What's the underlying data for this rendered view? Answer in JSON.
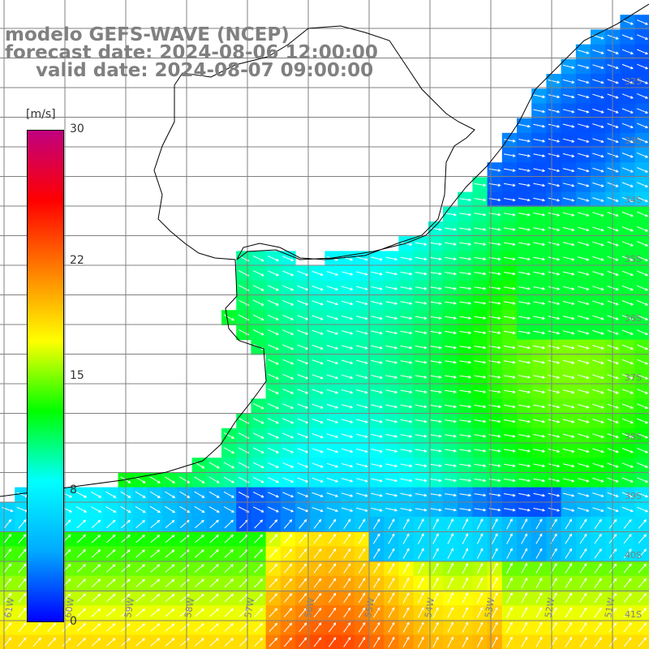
{
  "title": {
    "line1": "modelo GEFS-WAVE (NCEP)",
    "line2": "forecast date: 2024-08-06 12:00:00",
    "line3": "valid date: 2024-08-07 09:00:00"
  },
  "colorbar": {
    "units": "[m/s]",
    "ticks": [
      {
        "label": "30",
        "value": 30
      },
      {
        "label": "22",
        "value": 22
      },
      {
        "label": "15",
        "value": 15
      },
      {
        "label": "8",
        "value": 8
      },
      {
        "label": "0",
        "value": 0
      }
    ],
    "range": [
      0,
      30
    ],
    "colors": [
      "#0000ff",
      "#00aaff",
      "#00ffff",
      "#00ff00",
      "#ffff00",
      "#ff8000",
      "#ff0000",
      "#c00080"
    ]
  },
  "map": {
    "longitude_labels": [
      "61W",
      "60W",
      "59W",
      "58W",
      "57W",
      "56W",
      "55W",
      "54W",
      "53W",
      "52W",
      "51W"
    ],
    "latitude_labels": [
      "32S",
      "33S",
      "34S",
      "35S",
      "36S",
      "37S",
      "38S",
      "39S",
      "40S",
      "41S"
    ],
    "land_color": "#ffffff",
    "grid_color": "#808080",
    "coast_color": "#000000"
  }
}
